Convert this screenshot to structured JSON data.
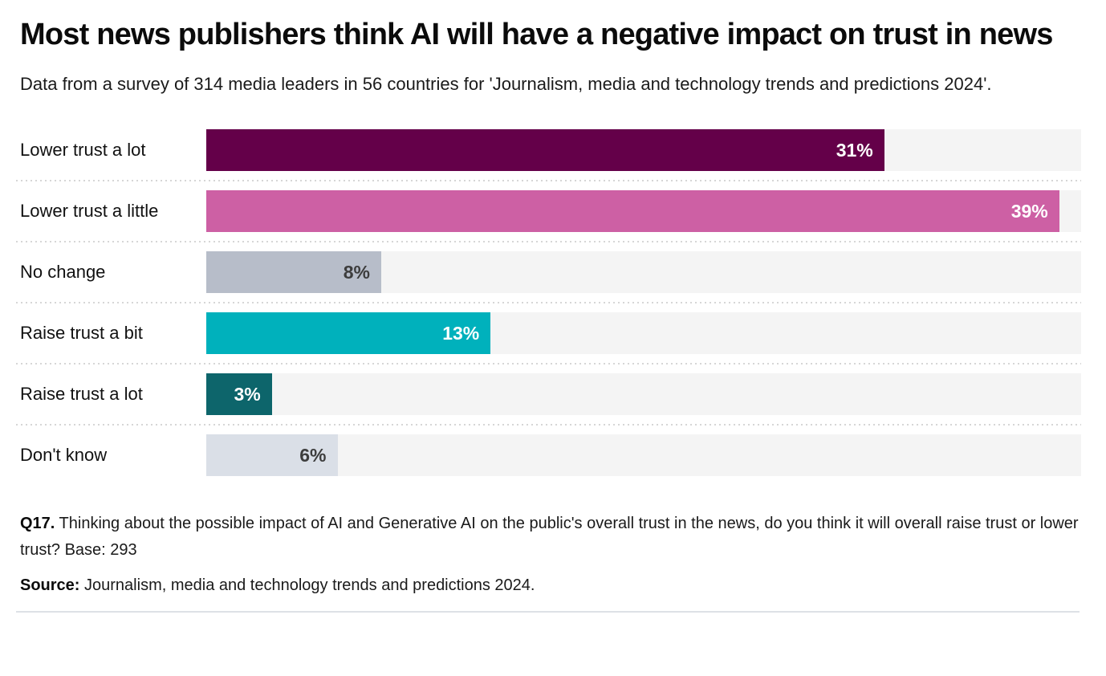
{
  "page": {
    "title": "Most news publishers think AI will have a negative impact on trust in news",
    "subtitle": "Data from a survey of 314 media leaders in 56 countries for 'Journalism, media and technology trends and predictions 2024'."
  },
  "chart_data": {
    "type": "bar",
    "orientation": "horizontal",
    "title": "Most news publishers think AI will have a negative impact on trust in news",
    "categories": [
      "Lower trust a lot",
      "Lower trust a little",
      "No change",
      "Raise trust a bit",
      "Raise trust a lot",
      "Don't know"
    ],
    "values": [
      31,
      39,
      8,
      13,
      3,
      6
    ],
    "value_labels": [
      "31%",
      "39%",
      "8%",
      "13%",
      "3%",
      "6%"
    ],
    "unit": "%",
    "xlim": [
      0,
      40
    ],
    "bar_colors": [
      "#640049",
      "#cd60a4",
      "#b7bdc9",
      "#00b1bc",
      "#0d656b",
      "#dadfe7"
    ],
    "value_label_colors": [
      "#ffffff",
      "#ffffff",
      "#3d3d3d",
      "#ffffff",
      "#ffffff",
      "#3d3d3d"
    ],
    "track_color": "#f4f4f4",
    "grid": "dotted-row-separators",
    "legend": "none"
  },
  "footer": {
    "question_bold": "Q17.",
    "question_rest": " Thinking about the possible impact of AI and Generative AI on the public's overall trust in the news, do you think it will overall raise trust or lower trust? Base: 293",
    "source_bold": "Source:",
    "source_rest": " Journalism, media and technology trends and predictions 2024."
  }
}
